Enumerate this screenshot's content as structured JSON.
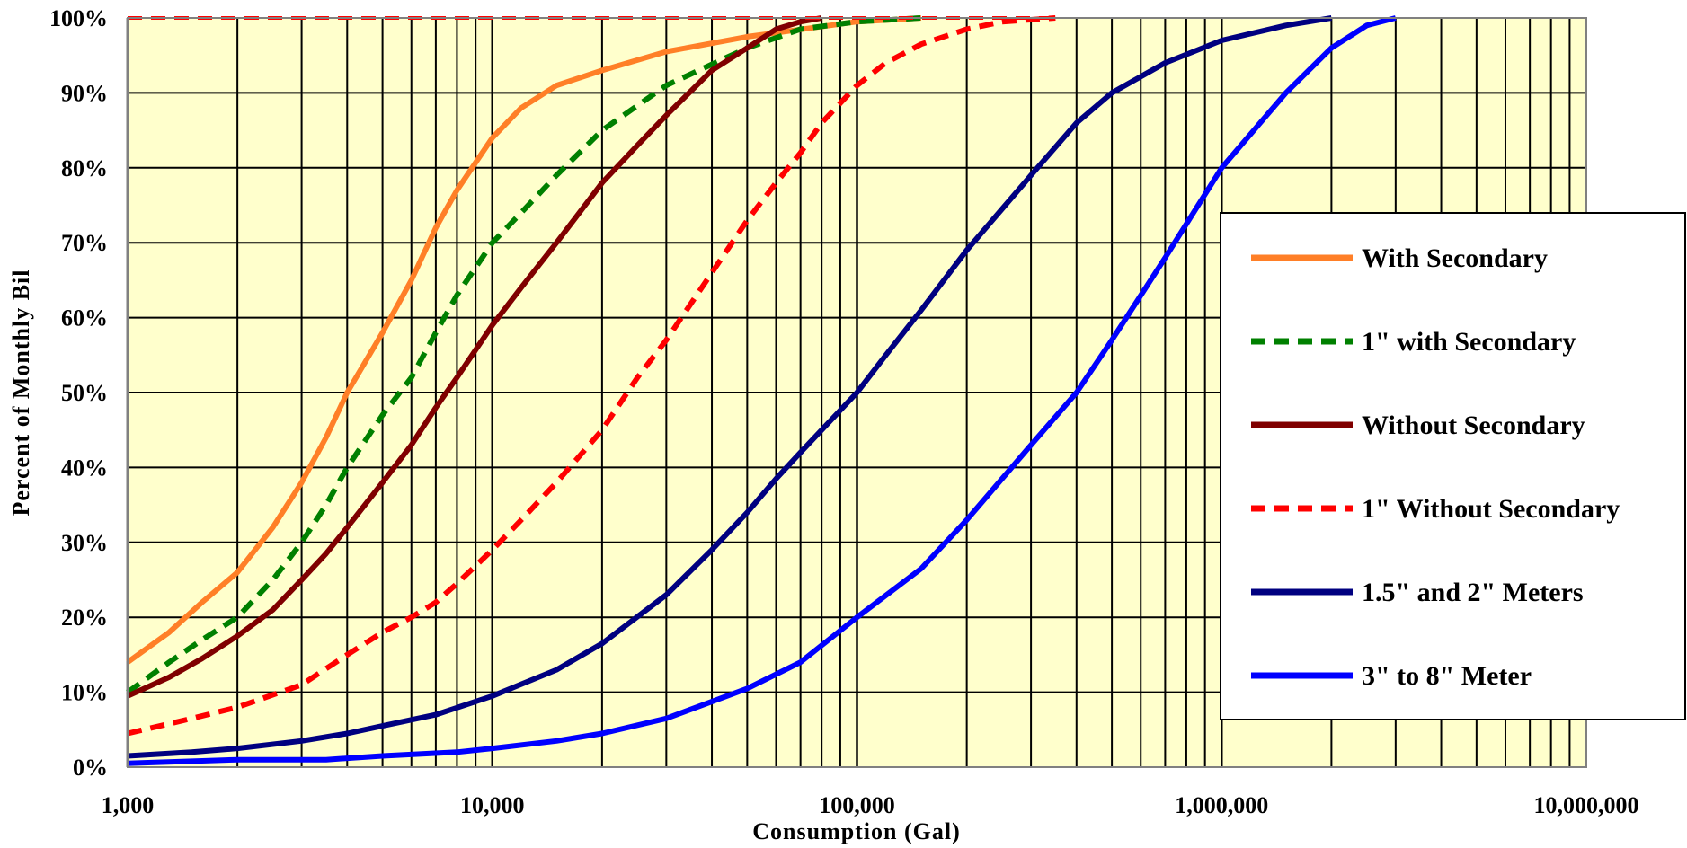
{
  "chart_data": {
    "type": "line",
    "title": "",
    "xlabel": "Consumption (Gal)",
    "ylabel": "Percent of Monthly Bil",
    "x_scale": "log",
    "xlim": [
      1000,
      10000000
    ],
    "ylim": [
      0,
      100
    ],
    "x_ticks": [
      1000,
      10000,
      100000,
      1000000,
      10000000
    ],
    "x_tick_labels": [
      "1,000",
      "10,000",
      "100,000",
      "1,000,000",
      "10,000,000"
    ],
    "y_ticks": [
      0,
      10,
      20,
      30,
      40,
      50,
      60,
      70,
      80,
      90,
      100
    ],
    "y_tick_labels": [
      "0%",
      "10%",
      "20%",
      "30%",
      "40%",
      "50%",
      "60%",
      "70%",
      "80%",
      "90%",
      "100%"
    ],
    "grid": true,
    "legend_position": "right",
    "plot_background": "#ffffcc",
    "series": [
      {
        "name": "With Secondary",
        "color": "#ff7f27",
        "dash": "solid",
        "points": [
          [
            1000,
            14
          ],
          [
            1300,
            18
          ],
          [
            1600,
            22
          ],
          [
            2000,
            26
          ],
          [
            2500,
            32
          ],
          [
            3000,
            38
          ],
          [
            3500,
            44
          ],
          [
            4000,
            50
          ],
          [
            5000,
            58
          ],
          [
            6000,
            65
          ],
          [
            7000,
            72
          ],
          [
            8000,
            77
          ],
          [
            10000,
            84
          ],
          [
            12000,
            88
          ],
          [
            15000,
            91
          ],
          [
            20000,
            93
          ],
          [
            30000,
            95.5
          ],
          [
            50000,
            97.5
          ],
          [
            100000,
            99.5
          ],
          [
            150000,
            100
          ]
        ]
      },
      {
        "name": "1\" with Secondary",
        "color": "#008000",
        "dash": "dashed",
        "points": [
          [
            1000,
            10
          ],
          [
            1300,
            14
          ],
          [
            1600,
            17
          ],
          [
            2000,
            20
          ],
          [
            2500,
            25
          ],
          [
            3000,
            30
          ],
          [
            3500,
            35
          ],
          [
            4000,
            40
          ],
          [
            5000,
            47
          ],
          [
            6000,
            52
          ],
          [
            7000,
            58
          ],
          [
            8000,
            63
          ],
          [
            10000,
            70
          ],
          [
            12000,
            74
          ],
          [
            15000,
            79
          ],
          [
            20000,
            85
          ],
          [
            30000,
            91
          ],
          [
            50000,
            96
          ],
          [
            70000,
            98.5
          ],
          [
            100000,
            99.5
          ],
          [
            150000,
            100
          ]
        ]
      },
      {
        "name": "Without Secondary",
        "color": "#800000",
        "dash": "solid",
        "points": [
          [
            1000,
            9.5
          ],
          [
            1300,
            12
          ],
          [
            1600,
            14.5
          ],
          [
            2000,
            17.5
          ],
          [
            2500,
            21
          ],
          [
            3000,
            25
          ],
          [
            3500,
            28.5
          ],
          [
            4000,
            32
          ],
          [
            5000,
            38
          ],
          [
            6000,
            43
          ],
          [
            7000,
            48
          ],
          [
            8000,
            52
          ],
          [
            10000,
            59
          ],
          [
            12000,
            64
          ],
          [
            15000,
            70
          ],
          [
            20000,
            78
          ],
          [
            25000,
            83
          ],
          [
            30000,
            87
          ],
          [
            40000,
            93
          ],
          [
            50000,
            96
          ],
          [
            60000,
            98.5
          ],
          [
            70000,
            99.5
          ],
          [
            80000,
            100
          ]
        ]
      },
      {
        "name": "1\" Without Secondary",
        "color": "#ff0000",
        "dash": "dashed",
        "points": [
          [
            1000,
            4.5
          ],
          [
            1500,
            6.5
          ],
          [
            2000,
            8
          ],
          [
            3000,
            11
          ],
          [
            4000,
            15
          ],
          [
            5000,
            18
          ],
          [
            6000,
            20
          ],
          [
            7000,
            22
          ],
          [
            8000,
            24.5
          ],
          [
            10000,
            29
          ],
          [
            12000,
            33
          ],
          [
            15000,
            38
          ],
          [
            20000,
            45
          ],
          [
            25000,
            52
          ],
          [
            30000,
            57
          ],
          [
            40000,
            66
          ],
          [
            50000,
            73
          ],
          [
            60000,
            78
          ],
          [
            70000,
            82
          ],
          [
            80000,
            86
          ],
          [
            100000,
            91
          ],
          [
            120000,
            94
          ],
          [
            150000,
            96.5
          ],
          [
            200000,
            98.5
          ],
          [
            250000,
            99.5
          ],
          [
            350000,
            100
          ]
        ]
      },
      {
        "name": "1.5\" and 2\" Meters",
        "color": "#000080",
        "dash": "solid",
        "points": [
          [
            1000,
            1.5
          ],
          [
            1500,
            2
          ],
          [
            2000,
            2.5
          ],
          [
            3000,
            3.5
          ],
          [
            4000,
            4.5
          ],
          [
            5000,
            5.5
          ],
          [
            7000,
            7
          ],
          [
            10000,
            9.5
          ],
          [
            15000,
            13
          ],
          [
            20000,
            16.5
          ],
          [
            30000,
            23
          ],
          [
            40000,
            29
          ],
          [
            50000,
            34
          ],
          [
            60000,
            38.5
          ],
          [
            70000,
            42
          ],
          [
            80000,
            45
          ],
          [
            100000,
            50
          ],
          [
            120000,
            55
          ],
          [
            150000,
            61
          ],
          [
            200000,
            69
          ],
          [
            300000,
            79
          ],
          [
            400000,
            86
          ],
          [
            500000,
            90
          ],
          [
            700000,
            94
          ],
          [
            1000000,
            97
          ],
          [
            1500000,
            99
          ],
          [
            2000000,
            100
          ]
        ]
      },
      {
        "name": "3\" to 8\" Meter",
        "color": "#0000ff",
        "dash": "solid",
        "points": [
          [
            1000,
            0.5
          ],
          [
            2000,
            1
          ],
          [
            3500,
            1
          ],
          [
            5000,
            1.5
          ],
          [
            8000,
            2
          ],
          [
            10000,
            2.5
          ],
          [
            15000,
            3.5
          ],
          [
            20000,
            4.5
          ],
          [
            30000,
            6.5
          ],
          [
            50000,
            10.5
          ],
          [
            70000,
            14
          ],
          [
            100000,
            20
          ],
          [
            150000,
            26.5
          ],
          [
            200000,
            33
          ],
          [
            300000,
            43
          ],
          [
            400000,
            50
          ],
          [
            500000,
            57
          ],
          [
            700000,
            68
          ],
          [
            1000000,
            80
          ],
          [
            1500000,
            90
          ],
          [
            2000000,
            96
          ],
          [
            2500000,
            99
          ],
          [
            3000000,
            100
          ]
        ]
      }
    ]
  }
}
